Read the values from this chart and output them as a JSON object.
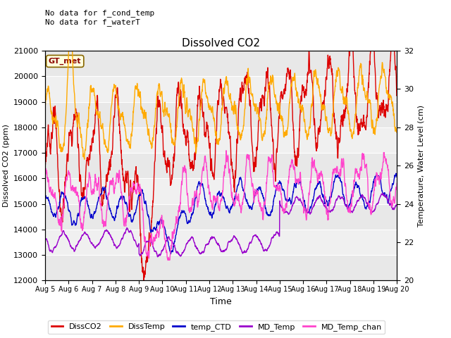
{
  "title": "Dissolved CO2",
  "xlabel": "Time",
  "ylabel_left": "Dissolved CO2 (ppm)",
  "ylabel_right": "Temperature, Water Level (cm)",
  "ylim_left": [
    12000,
    21000
  ],
  "ylim_right": [
    20,
    32
  ],
  "annotation_text": "No data for f_cond_temp\nNo data for f_waterT",
  "gt_label": "GT_met",
  "background_color": "#ffffff",
  "plot_bg_color": "#f0f0f0",
  "series_colors": {
    "DissCO2": "#dd0000",
    "DissTemp": "#ffaa00",
    "temp_CTD": "#0000cc",
    "MD_Temp": "#9900cc",
    "MD_Temp_chan": "#ff44cc"
  },
  "xstart_day": 5,
  "xend_day": 20,
  "num_points": 2000,
  "figsize": [
    6.4,
    4.8
  ],
  "dpi": 100
}
